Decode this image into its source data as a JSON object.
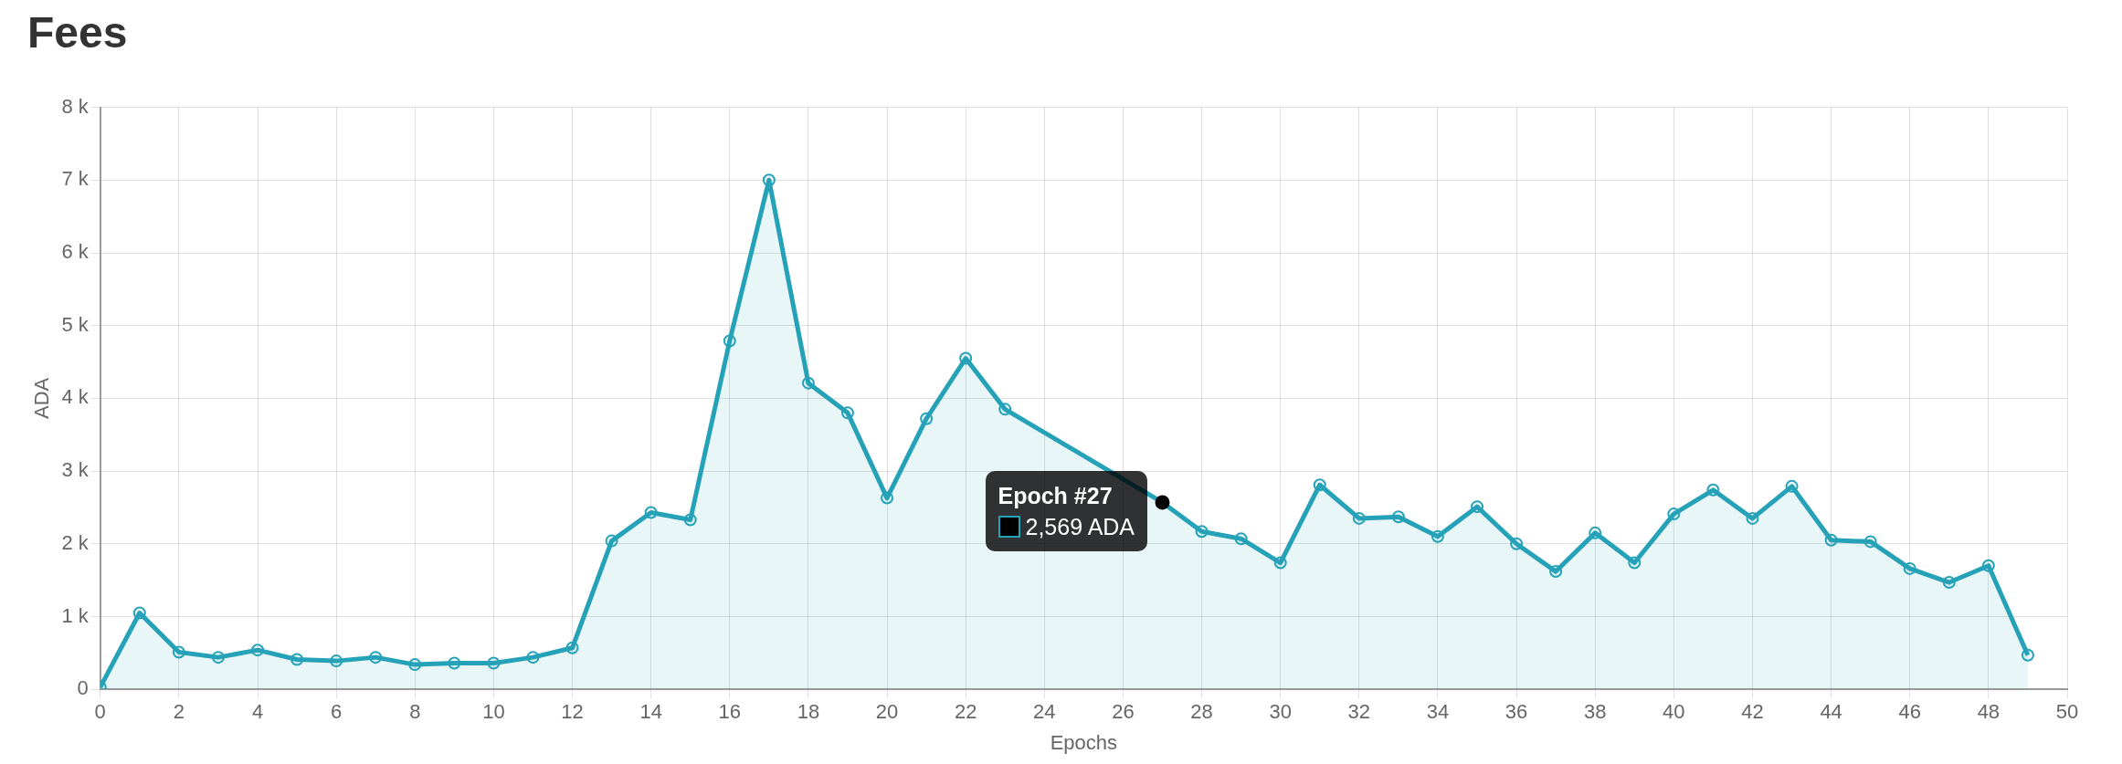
{
  "chart_data": {
    "type": "area",
    "title": "Fees",
    "xlabel": "Epochs",
    "ylabel": "ADA",
    "x": [
      0,
      1,
      2,
      3,
      4,
      5,
      6,
      7,
      8,
      9,
      10,
      11,
      12,
      13,
      14,
      15,
      16,
      17,
      18,
      19,
      20,
      21,
      22,
      23,
      24,
      25,
      26,
      27,
      28,
      29,
      30,
      31,
      32,
      33,
      34,
      35,
      36,
      37,
      38,
      39,
      40,
      41,
      42,
      43,
      44,
      45,
      46,
      47,
      48,
      49
    ],
    "series": [
      {
        "color": "#26a2b8",
        "values": [
          30,
          1050,
          510,
          440,
          540,
          410,
          390,
          440,
          340,
          360,
          360,
          440,
          570,
          2040,
          2430,
          2330,
          4790,
          7000,
          4210,
          3800,
          2630,
          3720,
          4550,
          3850,
          null,
          null,
          null,
          2569,
          2170,
          2070,
          1740,
          2810,
          2350,
          2370,
          2100,
          2510,
          2000,
          1620,
          2150,
          1740,
          2410,
          2740,
          2350,
          2790,
          2050,
          2030,
          1660,
          1470,
          1700,
          470
        ]
      }
    ],
    "xlim": [
      0,
      50
    ],
    "xticks": [
      0,
      2,
      4,
      6,
      8,
      10,
      12,
      14,
      16,
      18,
      20,
      22,
      24,
      26,
      28,
      30,
      32,
      34,
      36,
      38,
      40,
      42,
      44,
      46,
      48,
      50
    ],
    "ylim": [
      0,
      8000
    ],
    "yticks": [
      0,
      {
        "value": 1000,
        "label": "1 k"
      },
      {
        "value": 2000,
        "label": "2 k"
      },
      {
        "value": 3000,
        "label": "3 k"
      },
      {
        "value": 4000,
        "label": "4 k"
      },
      {
        "value": 5000,
        "label": "5 k"
      },
      {
        "value": 6000,
        "label": "6 k"
      },
      {
        "value": 7000,
        "label": "7 k"
      },
      {
        "value": 8000,
        "label": "8 k"
      }
    ],
    "grid": true,
    "marker": "circle",
    "annotations": [
      {
        "text": "Epoch #27\n2,569 ADA",
        "x": 27,
        "y": 2569
      }
    ]
  }
}
